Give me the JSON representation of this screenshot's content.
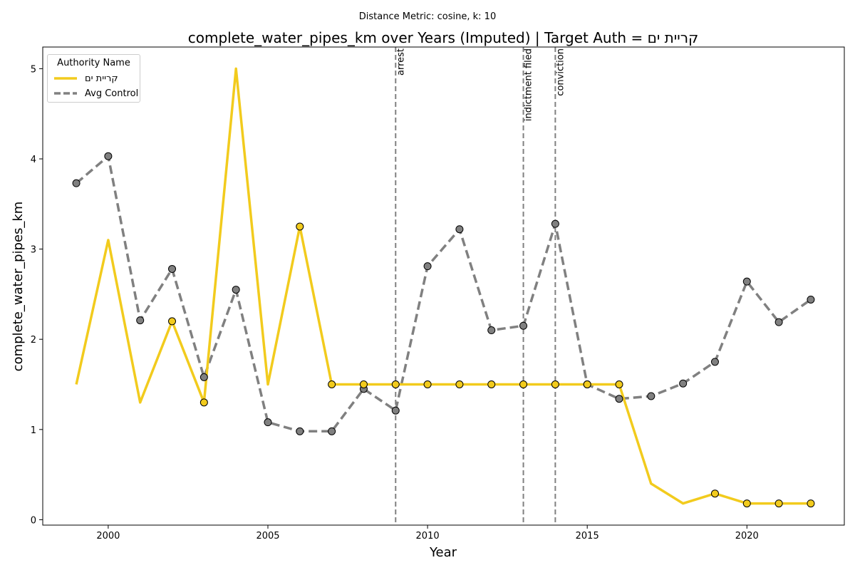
{
  "chart_data": {
    "type": "line",
    "suptitle": "Distance Metric: cosine, k: 10",
    "title": "complete_water_pipes_km over Years (Imputed) | Target Auth = קריית ים",
    "xlabel": "Year",
    "ylabel": "complete_water_pipes_km",
    "xlim": [
      1997.95,
      2023.05
    ],
    "ylim": [
      -0.06,
      5.24
    ],
    "xticks": [
      2000,
      2005,
      2010,
      2015,
      2020
    ],
    "yticks": [
      0,
      1,
      2,
      3,
      4,
      5
    ],
    "grid": false,
    "legend": {
      "title": "Authority Name",
      "placement": "top-left",
      "entries": [
        "קריית ים",
        "Avg Control"
      ]
    },
    "x": [
      1999,
      2000,
      2001,
      2002,
      2003,
      2004,
      2005,
      2006,
      2007,
      2008,
      2009,
      2010,
      2011,
      2012,
      2013,
      2014,
      2015,
      2016,
      2017,
      2018,
      2019,
      2020,
      2021,
      2022
    ],
    "series": [
      {
        "name": "קריית ים",
        "color": "#f2cb1d",
        "style": "solid",
        "values": [
          1.5,
          3.1,
          1.3,
          2.2,
          1.3,
          5.0,
          1.5,
          3.25,
          1.5,
          1.5,
          1.5,
          1.5,
          1.5,
          1.5,
          1.5,
          1.5,
          1.5,
          1.5,
          0.4,
          0.18,
          0.29,
          0.18,
          0.18,
          0.18
        ],
        "observed": [
          false,
          false,
          false,
          true,
          true,
          false,
          false,
          true,
          true,
          true,
          true,
          true,
          true,
          true,
          true,
          true,
          true,
          true,
          false,
          false,
          true,
          true,
          true,
          true
        ]
      },
      {
        "name": "Avg Control",
        "color": "#808080",
        "style": "dashed",
        "values": [
          3.73,
          4.03,
          2.21,
          2.78,
          1.58,
          2.55,
          1.08,
          0.98,
          0.98,
          1.45,
          1.21,
          2.81,
          3.22,
          2.1,
          2.15,
          3.28,
          1.5,
          1.34,
          1.37,
          1.51,
          1.75,
          2.64,
          2.19,
          2.44
        ]
      }
    ],
    "events": [
      {
        "x": 2009,
        "label": "arrest"
      },
      {
        "x": 2013,
        "label": "indictment filed"
      },
      {
        "x": 2014,
        "label": "conviction"
      }
    ]
  }
}
